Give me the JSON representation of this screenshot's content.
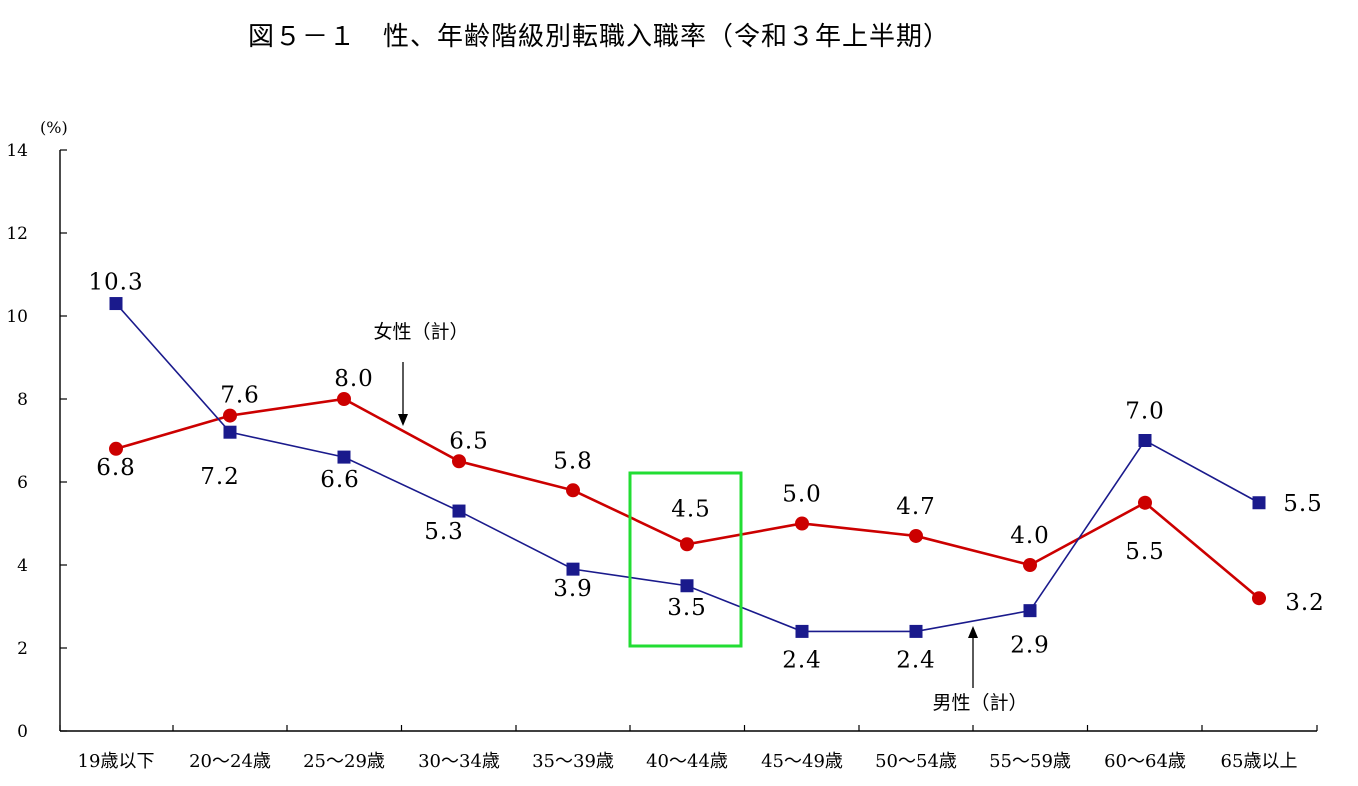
{
  "title": "図５－１　性、年齢階級別転職入職率（令和３年上半期）",
  "chart_data": {
    "type": "line",
    "title": "図５－１　性、年齢階級別転職入職率（令和３年上半期）",
    "y_unit": "(%)",
    "ylim": [
      0,
      14
    ],
    "yticks": [
      "0",
      "2",
      "4",
      "6",
      "8",
      "10",
      "12",
      "14"
    ],
    "grid": false,
    "categories": [
      "19歳以下",
      "20～24歳",
      "25～29歳",
      "30～34歳",
      "35～39歳",
      "40～44歳",
      "45～49歳",
      "50～54歳",
      "55～59歳",
      "60～64歳",
      "65歳以上"
    ],
    "series": [
      {
        "name": "女性（計）",
        "color": "#cc0000",
        "marker": "circle",
        "values": [
          6.8,
          7.6,
          8.0,
          6.5,
          5.8,
          4.5,
          5.0,
          4.7,
          4.0,
          5.5,
          3.2
        ],
        "labels": [
          "6.8",
          "7.6",
          "8.0",
          "6.5",
          "5.8",
          "4.5",
          "5.0",
          "4.7",
          "4.0",
          "5.5",
          "3.2"
        ]
      },
      {
        "name": "男性（計）",
        "color": "#1a1a8c",
        "marker": "square",
        "values": [
          10.3,
          7.2,
          6.6,
          5.3,
          3.9,
          3.5,
          2.4,
          2.4,
          2.9,
          7.0,
          5.5
        ],
        "labels": [
          "10.3",
          "7.2",
          "6.6",
          "5.3",
          "3.9",
          "3.5",
          "2.4",
          "2.4",
          "2.9",
          "7.0",
          "5.5"
        ]
      }
    ],
    "annotations": [
      {
        "text": "女性（計）",
        "series": 0,
        "arrow": "down"
      },
      {
        "text": "男性（計）",
        "series": 1,
        "arrow": "up"
      }
    ],
    "highlight": {
      "category": "40～44歳",
      "color": "#22dd33"
    }
  }
}
